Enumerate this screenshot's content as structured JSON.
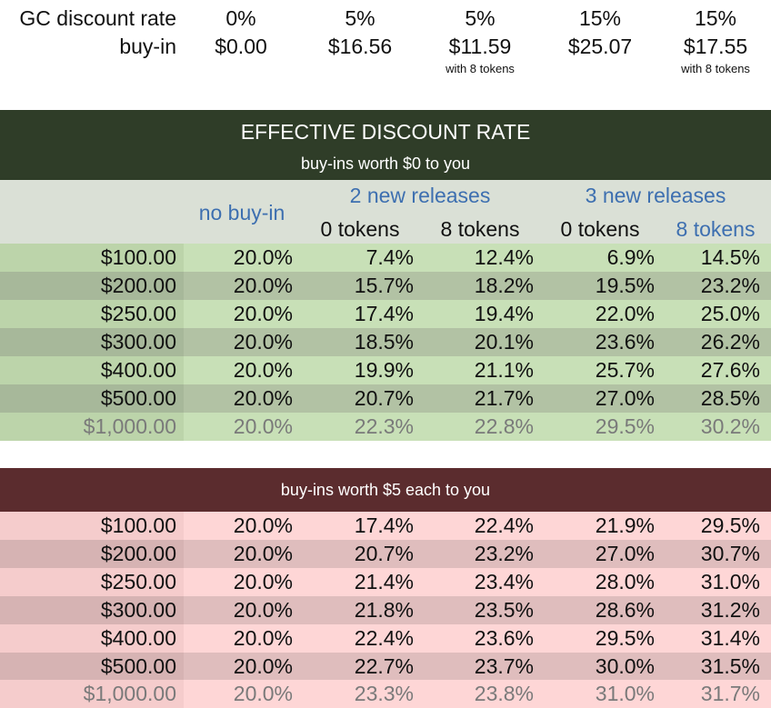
{
  "top": {
    "rate_label": "GC discount rate",
    "buyin_label": "buy-in",
    "columns": [
      {
        "rate": "0%",
        "buyin": "$0.00",
        "note": ""
      },
      {
        "rate": "5%",
        "buyin": "$16.56",
        "note": ""
      },
      {
        "rate": "5%",
        "buyin": "$11.59",
        "note": "with 8 tokens"
      },
      {
        "rate": "15%",
        "buyin": "$25.07",
        "note": ""
      },
      {
        "rate": "15%",
        "buyin": "$17.55",
        "note": "with 8 tokens"
      }
    ]
  },
  "section1": {
    "title": "EFFECTIVE DISCOUNT RATE",
    "subtitle": "buy-ins worth $0 to you",
    "header": {
      "no_buyin": "no buy-in",
      "group1": "2 new releases",
      "group2": "3 new releases",
      "sub": [
        "0 tokens",
        "8 tokens",
        "0 tokens",
        "8 tokens"
      ]
    },
    "rows": [
      {
        "amount": "$100.00",
        "values": [
          "20.0%",
          "7.4%",
          "12.4%",
          "6.9%",
          "14.5%"
        ]
      },
      {
        "amount": "$200.00",
        "values": [
          "20.0%",
          "15.7%",
          "18.2%",
          "19.5%",
          "23.2%"
        ]
      },
      {
        "amount": "$250.00",
        "values": [
          "20.0%",
          "17.4%",
          "19.4%",
          "22.0%",
          "25.0%"
        ]
      },
      {
        "amount": "$300.00",
        "values": [
          "20.0%",
          "18.5%",
          "20.1%",
          "23.6%",
          "26.2%"
        ]
      },
      {
        "amount": "$400.00",
        "values": [
          "20.0%",
          "19.9%",
          "21.1%",
          "25.7%",
          "27.6%"
        ]
      },
      {
        "amount": "$500.00",
        "values": [
          "20.0%",
          "20.7%",
          "21.7%",
          "27.0%",
          "28.5%"
        ]
      },
      {
        "amount": "$1,000.00",
        "values": [
          "20.0%",
          "22.3%",
          "22.8%",
          "29.5%",
          "30.2%"
        ]
      }
    ]
  },
  "section2": {
    "subtitle": "buy-ins worth $5 each to you",
    "rows": [
      {
        "amount": "$100.00",
        "values": [
          "20.0%",
          "17.4%",
          "22.4%",
          "21.9%",
          "29.5%"
        ]
      },
      {
        "amount": "$200.00",
        "values": [
          "20.0%",
          "20.7%",
          "23.2%",
          "27.0%",
          "30.7%"
        ]
      },
      {
        "amount": "$250.00",
        "values": [
          "20.0%",
          "21.4%",
          "23.4%",
          "28.0%",
          "31.0%"
        ]
      },
      {
        "amount": "$300.00",
        "values": [
          "20.0%",
          "21.8%",
          "23.5%",
          "28.6%",
          "31.2%"
        ]
      },
      {
        "amount": "$400.00",
        "values": [
          "20.0%",
          "22.4%",
          "23.6%",
          "29.5%",
          "31.4%"
        ]
      },
      {
        "amount": "$500.00",
        "values": [
          "20.0%",
          "22.7%",
          "23.7%",
          "30.0%",
          "31.5%"
        ]
      },
      {
        "amount": "$1,000.00",
        "values": [
          "20.0%",
          "23.3%",
          "23.8%",
          "31.0%",
          "31.7%"
        ]
      }
    ]
  },
  "colors": {
    "green_band": "#2f3d28",
    "red_band": "#5b2c2e",
    "header_blue": "#3d6fb0",
    "green_light": "#c8e0b7",
    "green_dark": "#b2c2a4",
    "red_light": "#fed6d6",
    "red_dark": "#dfbdbd"
  }
}
